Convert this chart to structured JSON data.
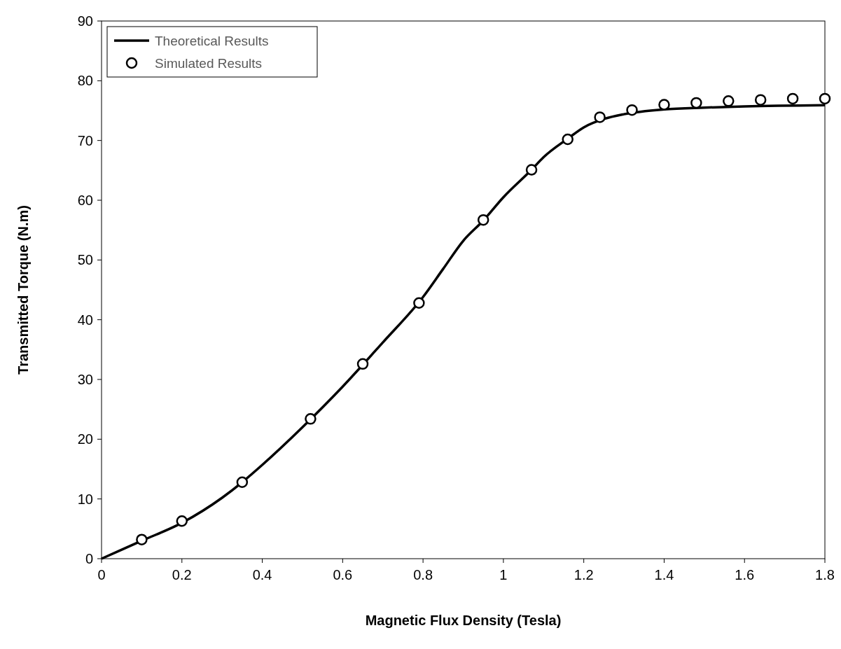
{
  "chart_data": {
    "type": "line",
    "xlabel": "Magnetic Flux Density (Tesla)",
    "ylabel": "Transmitted Torque (N.m)",
    "xlim": [
      0,
      1.8
    ],
    "xticks": [
      {
        "value": 0,
        "label": "0"
      },
      {
        "value": 0.2,
        "label": "0.2"
      },
      {
        "value": 0.4,
        "label": "0.4"
      },
      {
        "value": 0.6,
        "label": "0.6"
      },
      {
        "value": 0.8,
        "label": "0.8"
      },
      {
        "value": 1,
        "label": "1"
      },
      {
        "value": 1.2,
        "label": "1.2"
      },
      {
        "value": 1.4,
        "label": "1.4"
      },
      {
        "value": 1.6,
        "label": "1.6"
      },
      {
        "value": 1.8,
        "label": "1.8"
      }
    ],
    "ylim": [
      0,
      90
    ],
    "yticks": [
      0,
      10,
      20,
      30,
      40,
      50,
      60,
      70,
      80,
      90
    ],
    "grid": false,
    "legend": "top left",
    "series": [
      {
        "name": "Theoretical Results",
        "color": "#000000",
        "marker": "none",
        "line_style": "solid",
        "x": [
          0,
          0.1,
          0.2,
          0.3,
          0.35,
          0.4,
          0.5,
          0.6,
          0.7,
          0.8,
          0.85,
          0.9,
          0.95,
          1.0,
          1.07,
          1.1,
          1.16,
          1.2,
          1.25,
          1.3,
          1.4,
          1.5,
          1.6,
          1.8
        ],
        "values": [
          0,
          3.0,
          6.0,
          10.2,
          12.8,
          15.7,
          22.0,
          28.8,
          36.2,
          43.8,
          48.5,
          53.2,
          56.6,
          60.5,
          65.1,
          67.2,
          70.3,
          72.2,
          73.6,
          74.4,
          75.2,
          75.5,
          75.7,
          75.9
        ]
      },
      {
        "name": "Simulated Results",
        "type": "scatter",
        "color": "#000000",
        "marker": "circle",
        "x": [
          0.1,
          0.2,
          0.35,
          0.52,
          0.65,
          0.79,
          0.95,
          1.07,
          1.16,
          1.24,
          1.32,
          1.4,
          1.48,
          1.56,
          1.64,
          1.72,
          1.8
        ],
        "values": [
          3.2,
          6.3,
          12.8,
          23.4,
          32.6,
          42.8,
          56.7,
          65.1,
          70.2,
          73.9,
          75.1,
          76.0,
          76.3,
          76.6,
          76.8,
          77.0,
          77.0
        ]
      }
    ]
  }
}
